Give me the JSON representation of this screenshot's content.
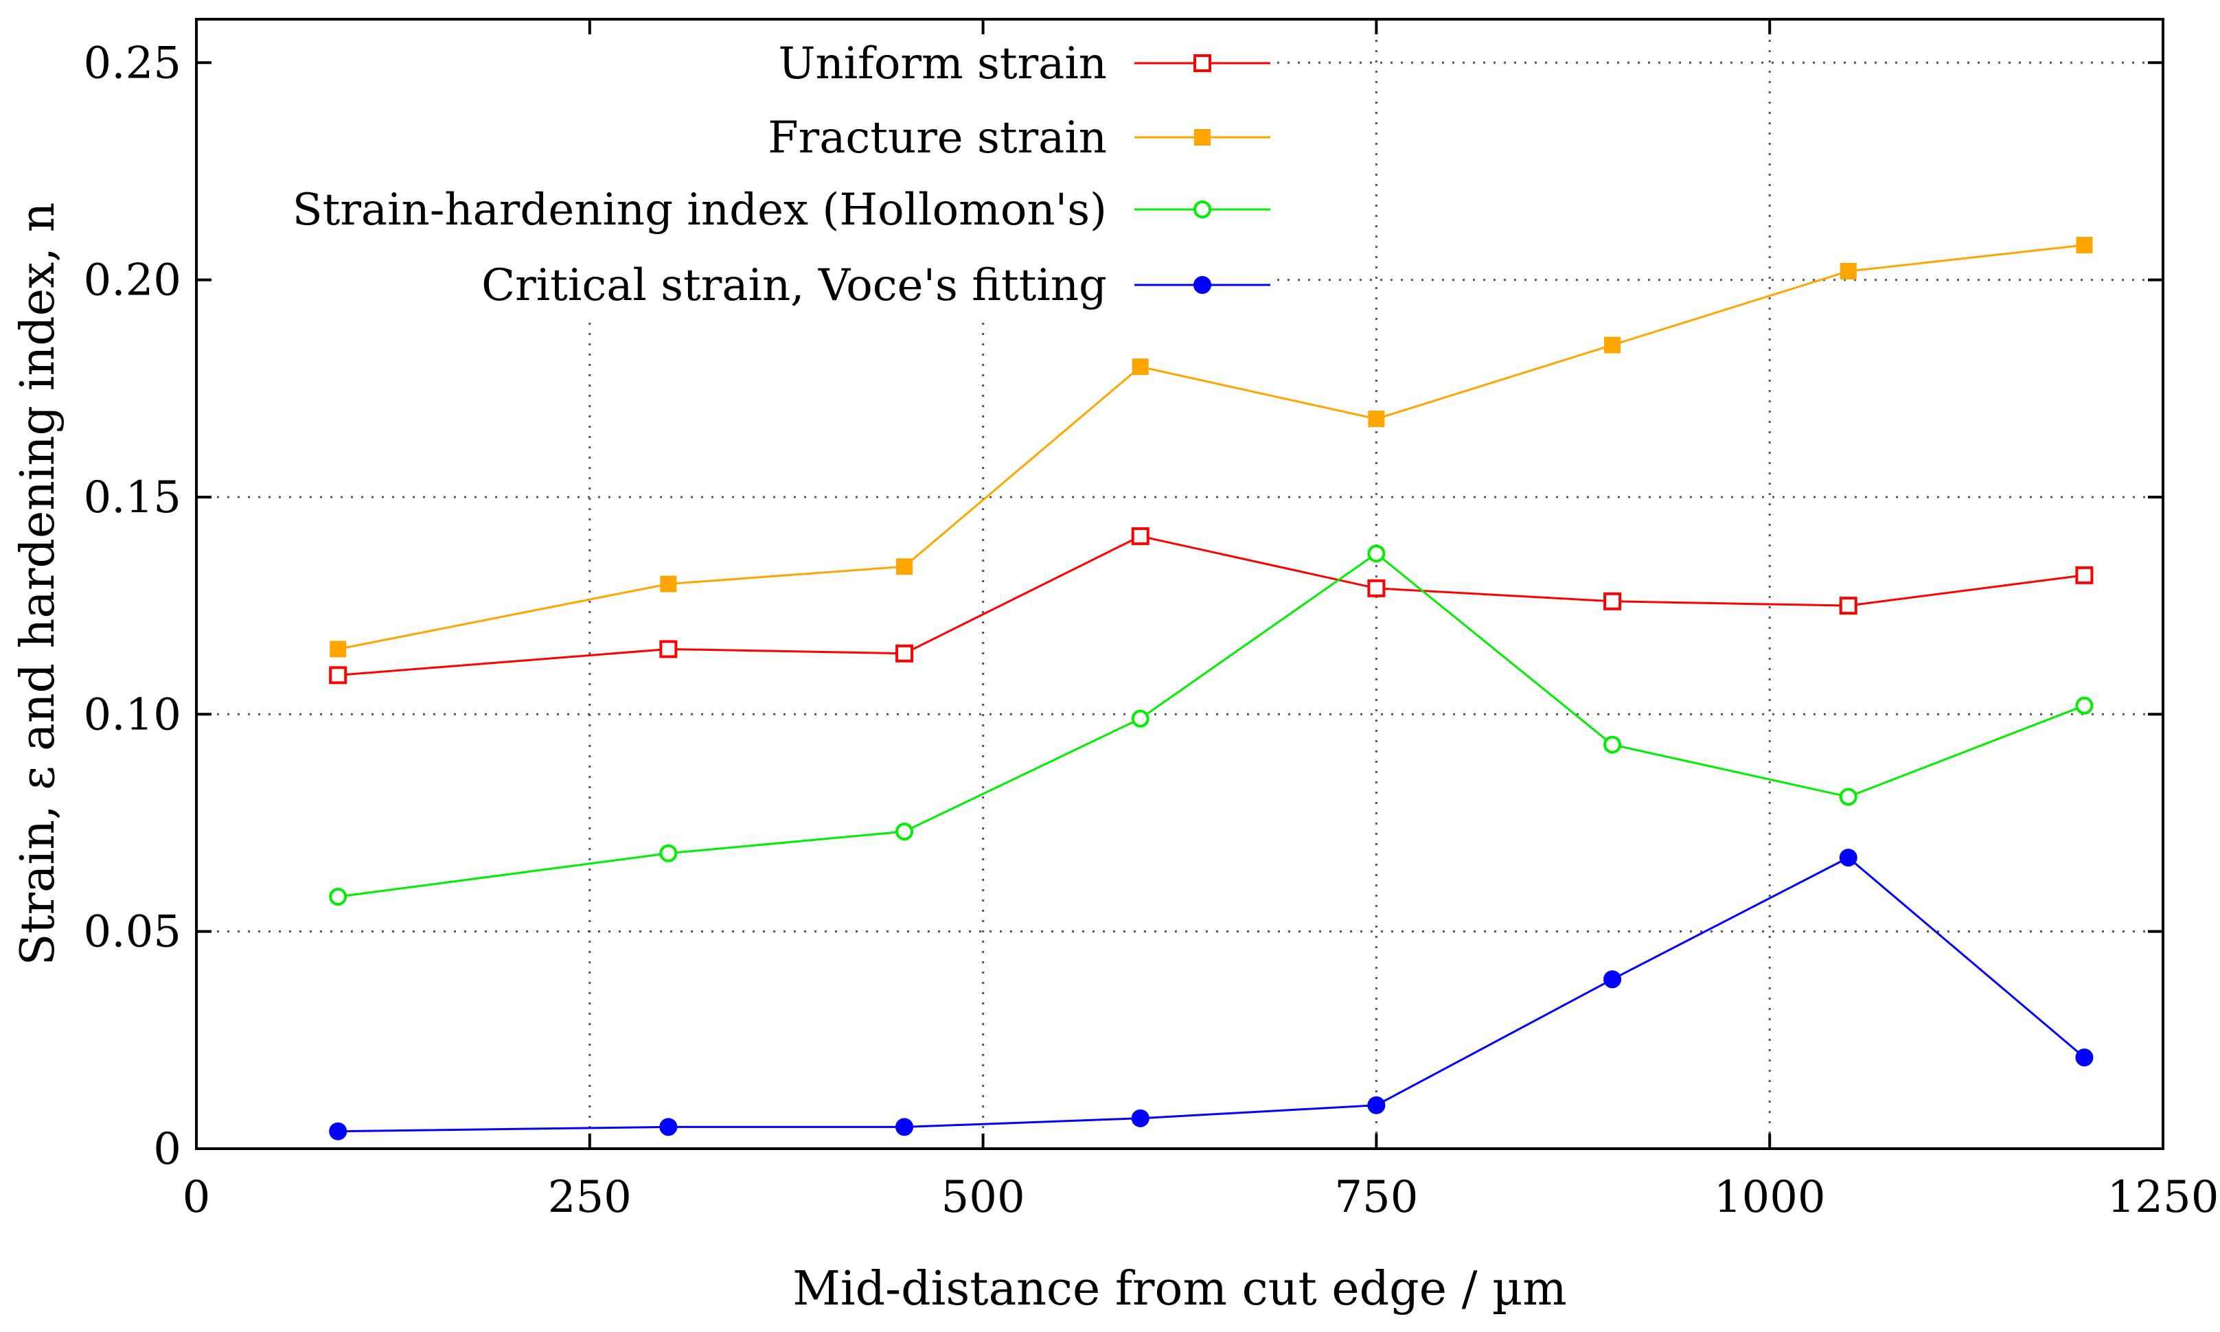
{
  "chart_data": {
    "type": "line",
    "xlabel": "Mid-distance from cut edge / µm",
    "ylabel": "Strain, ε  and hardening index, n",
    "xlim": [
      0,
      1250
    ],
    "ylim": [
      0,
      0.26
    ],
    "xticks": [
      0,
      250,
      500,
      750,
      1000,
      1250
    ],
    "xtick_labels": [
      "0",
      "250",
      "500",
      "750",
      "1000",
      "1250"
    ],
    "yticks": [
      0,
      0.05,
      0.1,
      0.15,
      0.2,
      0.25
    ],
    "ytick_labels": [
      "0",
      "0.05",
      "0.10",
      "0.15",
      "0.20",
      "0.25"
    ],
    "grid": true,
    "legend_position": "top-right",
    "x": [
      90,
      300,
      450,
      600,
      750,
      900,
      1050,
      1200
    ],
    "series": [
      {
        "name": "Uniform strain",
        "color": "#ff0000",
        "marker": "open-square",
        "values": [
          0.109,
          0.115,
          0.114,
          0.141,
          0.129,
          0.126,
          0.125,
          0.132
        ]
      },
      {
        "name": "Fracture strain",
        "color": "#ffa500",
        "marker": "filled-square",
        "values": [
          0.115,
          0.13,
          0.134,
          0.18,
          0.168,
          0.185,
          0.202,
          0.208
        ]
      },
      {
        "name": "Strain-hardening index (Hollomon's)",
        "color": "#00ee00",
        "marker": "open-circle",
        "values": [
          0.058,
          0.068,
          0.073,
          0.099,
          0.137,
          0.093,
          0.081,
          0.102
        ]
      },
      {
        "name": "Critical strain, Voce's fitting",
        "color": "#0000ff",
        "marker": "filled-circle",
        "values": [
          0.004,
          0.005,
          0.005,
          0.007,
          0.01,
          0.039,
          0.067,
          0.021
        ]
      }
    ]
  }
}
